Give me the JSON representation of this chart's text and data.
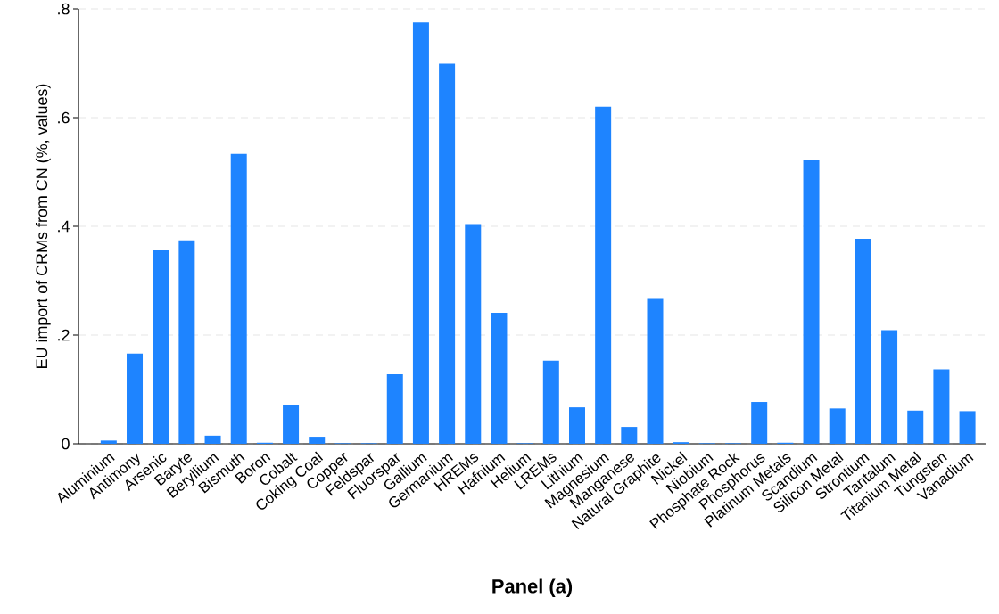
{
  "chart_data": {
    "type": "bar",
    "xlabel": "Panel (a)",
    "ylabel": "EU import of CRMs from CN (%, values)",
    "categories": [
      "Aluminium",
      "Antimony",
      "Arsenic",
      "Baryte",
      "Beryllium",
      "Bismuth",
      "Boron",
      "Cobalt",
      "Coking Coal",
      "Copper",
      "Feldspar",
      "Fluorspar",
      "Gallium",
      "Germanium",
      "HREMs",
      "Hafnium",
      "Helium",
      "LREMs",
      "Lithium",
      "Magnesium",
      "Manganese",
      "Natural Graphite",
      "Nickel",
      "Niobium",
      "Phosphate Rock",
      "Phosphorus",
      "Platinum Metals",
      "Scandium",
      "Silicon Metal",
      "Strontium",
      "Tantalum",
      "Titanium Metal",
      "Tungsten",
      "Vanadium"
    ],
    "values": [
      0.006,
      0.166,
      0.356,
      0.374,
      0.015,
      0.533,
      0.002,
      0.072,
      0.013,
      0.001,
      0.001,
      0.128,
      0.775,
      0.699,
      0.404,
      0.241,
      0.001,
      0.153,
      0.067,
      0.62,
      0.031,
      0.268,
      0.003,
      0.001,
      0.001,
      0.077,
      0.002,
      0.523,
      0.065,
      0.377,
      0.209,
      0.061,
      0.137,
      0.06
    ],
    "color": "#1e84ff",
    "ylim": [
      0,
      0.8
    ],
    "yticks": [
      0,
      {
        "value": 0.2,
        "label": ".2"
      },
      {
        "value": 0.4,
        "label": ".4"
      },
      {
        "value": 0.6,
        "label": ".6"
      },
      {
        "value": 0.8,
        "label": ".8"
      }
    ],
    "grid": "y"
  }
}
